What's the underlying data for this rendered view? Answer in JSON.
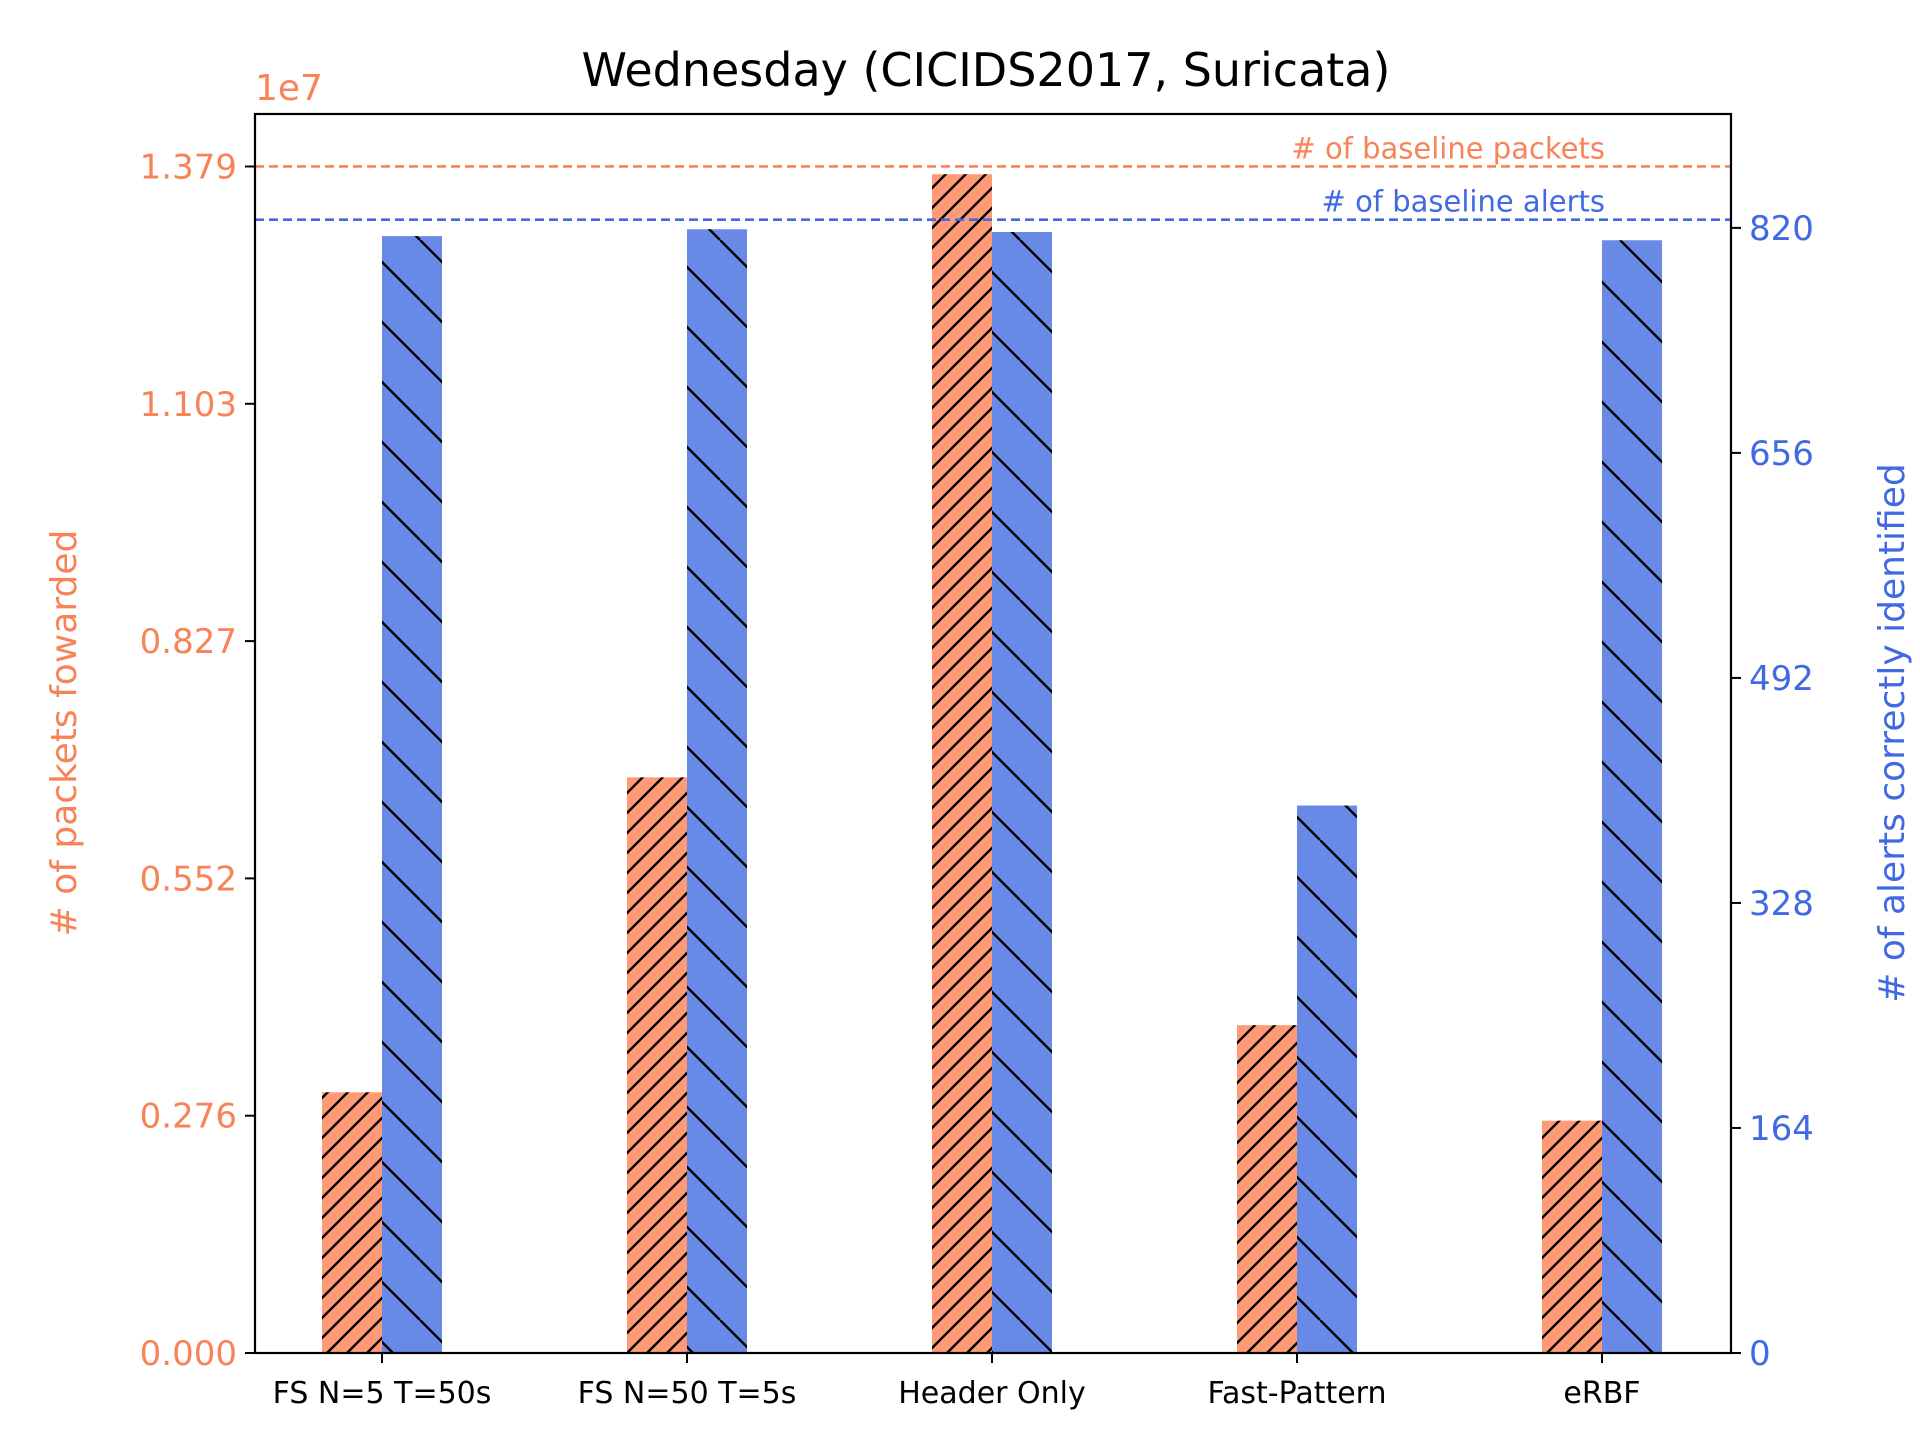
{
  "colors": {
    "packets": "#f98358",
    "packets_bar": "#ff9a76",
    "alerts": "#4169e1",
    "alerts_bar": "#6989e6",
    "axis": "#000000"
  },
  "chart_data": {
    "type": "bar",
    "title": "Wednesday (CICIDS2017, Suricata)",
    "categories": [
      "FS N=5 T=50s",
      "FS N=50 T=5s",
      "Header Only",
      "Fast-Pattern",
      "eRBF"
    ],
    "series": [
      {
        "name": "# of packets fowarded",
        "axis": "left",
        "hatch": "forward-diagonal",
        "values": [
          3030000,
          6690000,
          13700000,
          3810000,
          2700000
        ]
      },
      {
        "name": "# of alerts correctly identified",
        "axis": "right",
        "hatch": "back-diagonal",
        "values": [
          814,
          819,
          817,
          399,
          811
        ]
      }
    ],
    "left_axis": {
      "label": "# of packets fowarded",
      "offset_text": "1e7",
      "ylim": [
        0,
        14400000
      ],
      "ticks": [
        0,
        2758000,
        5516000,
        8274000,
        11032000,
        13790000
      ],
      "tick_labels": [
        "0.000",
        "0.276",
        "0.552",
        "0.827",
        "1.103",
        "1.379"
      ]
    },
    "right_axis": {
      "label": "# of alerts correctly identified",
      "ylim": [
        0,
        903
      ],
      "ticks": [
        0,
        164,
        328,
        492,
        656,
        820
      ],
      "tick_labels": [
        "0",
        "164",
        "328",
        "492",
        "656",
        "820"
      ]
    },
    "reference_lines": [
      {
        "label": "# of baseline packets",
        "axis": "left",
        "value": 13790000
      },
      {
        "label": "# of baseline alerts",
        "axis": "right",
        "value": 826
      }
    ],
    "grid": false,
    "legend": "none"
  }
}
